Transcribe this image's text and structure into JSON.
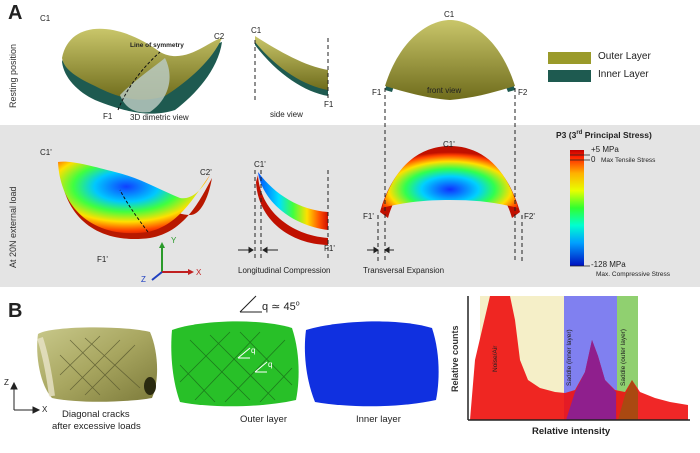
{
  "panel_a": {
    "letter": "A",
    "row_labels": {
      "rest": "Resting position",
      "load": "At 20N external load"
    },
    "views": {
      "dimetric": "3D dimetric view",
      "side": "side view",
      "front": "front view"
    },
    "symmetry": "Line of symmetry",
    "points_rest": {
      "c1a": "C1",
      "c2": "C2",
      "f1a": "F1",
      "c1b": "C1",
      "f1b": "F1",
      "c1c": "C1",
      "f1c": "F1",
      "f2": "F2"
    },
    "points_load": {
      "c1a": "C1'",
      "c2": "C2'",
      "f1a": "F1'",
      "c1b": "C1'",
      "f1b": "F1'",
      "c1c": "C1'",
      "f1c": "F1'",
      "f2": "F2'"
    },
    "legend": {
      "outer": "Outer Layer",
      "inner": "Inner Layer",
      "outer_color": "#9a9a2a",
      "inner_color": "#1e5a50"
    },
    "compression": "Longitudinal Compression",
    "expansion": "Transversal Expansion",
    "axes": {
      "y": "Y",
      "z": "Z",
      "x": "X"
    },
    "colorbar": {
      "title": "P3 (3",
      "title_sup": "rd",
      "title_end": " Principal Stress)",
      "top": "+5 MPa",
      "zero": "0",
      "zero_note": "Max Tensile Stress",
      "bottom": "-128 MPa",
      "bottom_note": "Max. Compressive Stress"
    }
  },
  "panel_b": {
    "letter": "B",
    "angle": "q ≃ 45",
    "angle_deg": "o",
    "q1": "q",
    "q2": "q",
    "captions": {
      "cracks_1": "Diagonal cracks",
      "cracks_2": "after excessive loads",
      "outer": "Outer layer",
      "inner": "Inner layer"
    },
    "axes": {
      "z": "Z",
      "x": "X"
    },
    "histogram": {
      "ylabel": "Relative counts",
      "xlabel": "Relative intensity",
      "bands": [
        {
          "label": "Noise/Air",
          "color": "#f5efc8"
        },
        {
          "label": "Saddle (inner layer)",
          "color": "#8080f0"
        },
        {
          "label": "Saddle (outer layer)",
          "color": "#90d070"
        }
      ]
    }
  }
}
